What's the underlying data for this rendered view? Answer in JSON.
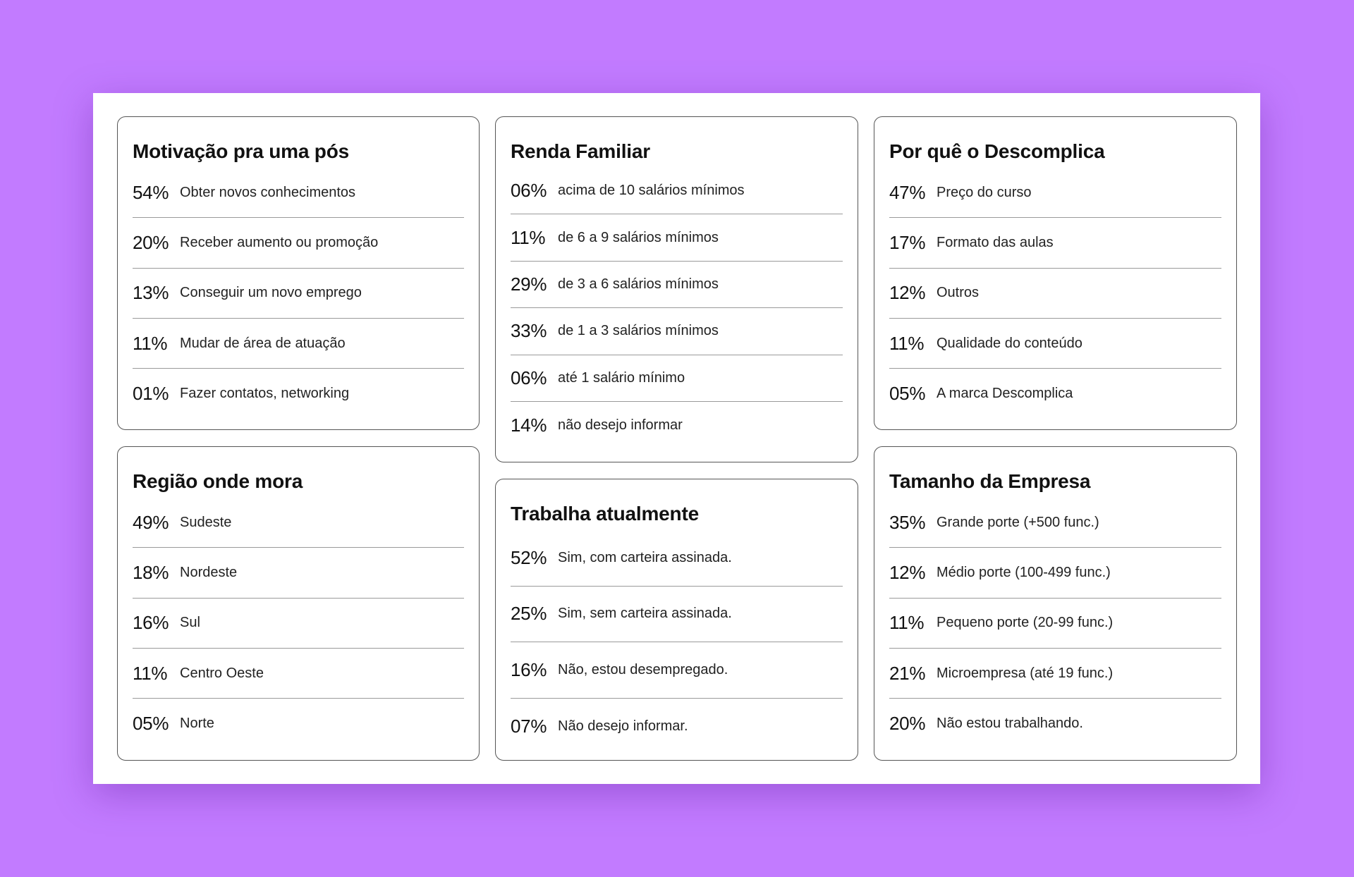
{
  "cards": [
    {
      "title": "Motivação pra uma pós",
      "items": [
        {
          "pct": "54%",
          "label": "Obter novos conhecimentos"
        },
        {
          "pct": "20%",
          "label": "Receber aumento ou promoção"
        },
        {
          "pct": "13%",
          "label": "Conseguir um novo emprego"
        },
        {
          "pct": "11%",
          "label": "Mudar de área de atuação"
        },
        {
          "pct": "01%",
          "label": "Fazer contatos, networking"
        }
      ]
    },
    {
      "title": "Renda Familiar",
      "items": [
        {
          "pct": "06%",
          "label": "acima de 10 salários mínimos"
        },
        {
          "pct": "11%",
          "label": "de 6 a 9 salários mínimos"
        },
        {
          "pct": "29%",
          "label": "de 3 a 6 salários mínimos"
        },
        {
          "pct": "33%",
          "label": "de 1 a 3 salários mínimos"
        },
        {
          "pct": "06%",
          "label": "até 1 salário mínimo"
        },
        {
          "pct": "14%",
          "label": "não desejo informar"
        }
      ]
    },
    {
      "title": "Por quê o Descomplica",
      "items": [
        {
          "pct": "47%",
          "label": "Preço do curso"
        },
        {
          "pct": "17%",
          "label": "Formato das aulas"
        },
        {
          "pct": "12%",
          "label": "Outros"
        },
        {
          "pct": "11%",
          "label": "Qualidade do conteúdo"
        },
        {
          "pct": "05%",
          "label": "A marca Descomplica"
        }
      ]
    },
    {
      "title": "Região onde mora",
      "items": [
        {
          "pct": "49%",
          "label": "Sudeste"
        },
        {
          "pct": "18%",
          "label": "Nordeste"
        },
        {
          "pct": "16%",
          "label": "Sul"
        },
        {
          "pct": "11%",
          "label": "Centro Oeste"
        },
        {
          "pct": "05%",
          "label": "Norte"
        }
      ]
    },
    {
      "title": "Trabalha atualmente",
      "items": [
        {
          "pct": "52%",
          "label": "Sim, com carteira assinada."
        },
        {
          "pct": "25%",
          "label": "Sim, sem carteira assinada."
        },
        {
          "pct": "16%",
          "label": "Não, estou desempregado."
        },
        {
          "pct": "07%",
          "label": "Não desejo informar."
        }
      ]
    },
    {
      "title": "Tamanho da Empresa",
      "items": [
        {
          "pct": "35%",
          "label": "Grande porte (+500 func.)"
        },
        {
          "pct": "12%",
          "label": "Médio porte (100-499 func.)"
        },
        {
          "pct": "11%",
          "label": "Pequeno porte (20-99 func.)"
        },
        {
          "pct": "21%",
          "label": "Microempresa (até 19 func.)"
        },
        {
          "pct": "20%",
          "label": "Não estou trabalhando."
        }
      ]
    }
  ]
}
